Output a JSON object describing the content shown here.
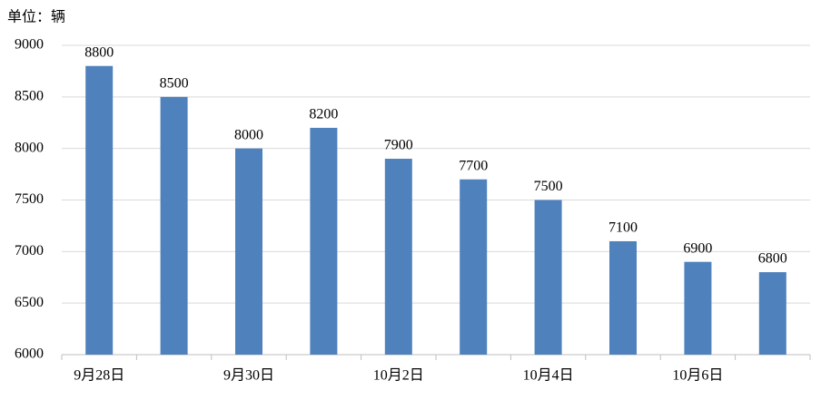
{
  "chart_data": {
    "type": "bar",
    "unit_label": "单位：辆",
    "categories": [
      "9月28日",
      null,
      "9月30日",
      null,
      "10月2日",
      null,
      "10月4日",
      null,
      "10月6日",
      null
    ],
    "values": [
      8800,
      8500,
      8000,
      8200,
      7900,
      7700,
      7500,
      7100,
      6900,
      6800
    ],
    "color": "#4f81bd",
    "ylim": [
      6000,
      9000
    ],
    "yticks": [
      6000,
      6500,
      7000,
      7500,
      8000,
      8500,
      9000
    ],
    "grid": true
  }
}
